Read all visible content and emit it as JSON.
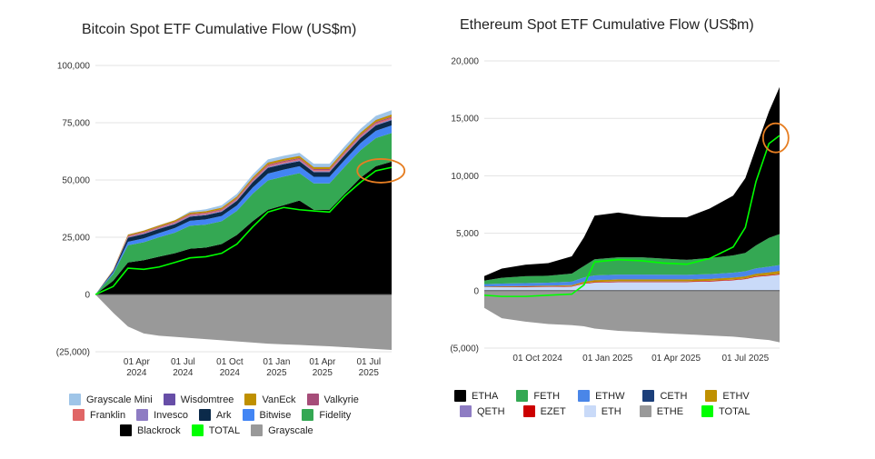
{
  "chart_data": [
    {
      "type": "area",
      "title": "Bitcoin Spot ETF Cumulative Flow (US$m)",
      "xlabel": "",
      "ylabel": "",
      "ylim": [
        -25000,
        100000
      ],
      "y_ticks": [
        "100,000",
        "75,000",
        "50,000",
        "25,000",
        "0",
        "(25,000)"
      ],
      "x_ticks": [
        {
          "line1": "01 Apr",
          "line2": "2024"
        },
        {
          "line1": "01 Jul",
          "line2": "2024"
        },
        {
          "line1": "01 Oct",
          "line2": "2024"
        },
        {
          "line1": "01 Jan",
          "line2": "2025"
        },
        {
          "line1": "01 Apr",
          "line2": "2025"
        },
        {
          "line1": "01 Jul",
          "line2": "2025"
        }
      ],
      "x": [
        "2024-01-11",
        "2024-02-15",
        "2024-03-15",
        "2024-04-15",
        "2024-05-15",
        "2024-06-15",
        "2024-07-15",
        "2024-08-15",
        "2024-09-15",
        "2024-10-15",
        "2024-11-15",
        "2024-12-15",
        "2025-01-15",
        "2025-02-15",
        "2025-03-15",
        "2025-04-15",
        "2025-05-15",
        "2025-06-15",
        "2025-07-15",
        "2025-08-15"
      ],
      "stacked_positive": true,
      "series": [
        {
          "name": "Blackrock",
          "color": "#000000",
          "values": [
            0,
            6000,
            14000,
            15000,
            16500,
            18000,
            20000,
            20500,
            22000,
            26000,
            32000,
            37000,
            39000,
            41000,
            37000,
            37000,
            44000,
            51000,
            56000,
            58000
          ]
        },
        {
          "name": "Fidelity",
          "color": "#34a853",
          "values": [
            0,
            3000,
            7500,
            7800,
            8500,
            9000,
            10000,
            10000,
            10000,
            10500,
            12000,
            12800,
            12500,
            12000,
            11500,
            11500,
            11800,
            12000,
            12300,
            12500
          ]
        },
        {
          "name": "Bitwise",
          "color": "#4285f4",
          "values": [
            0,
            700,
            1500,
            1700,
            1800,
            2000,
            2200,
            2300,
            2300,
            2400,
            2700,
            3000,
            3000,
            3000,
            2900,
            2900,
            3000,
            3100,
            3200,
            3300
          ]
        },
        {
          "name": "Ark",
          "color": "#0b2a4a",
          "values": [
            0,
            600,
            1800,
            1900,
            1800,
            1700,
            1800,
            1800,
            1800,
            2000,
            2300,
            2500,
            2400,
            2200,
            2000,
            2000,
            2100,
            2200,
            2300,
            2300
          ]
        },
        {
          "name": "Invesco",
          "color": "#8e7cc3",
          "values": [
            0,
            150,
            300,
            320,
            350,
            380,
            400,
            400,
            400,
            420,
            450,
            480,
            480,
            470,
            460,
            460,
            470,
            480,
            490,
            500
          ]
        },
        {
          "name": "Franklin",
          "color": "#e06666",
          "values": [
            0,
            100,
            250,
            270,
            300,
            330,
            350,
            350,
            360,
            380,
            420,
            460,
            470,
            470,
            460,
            460,
            480,
            500,
            520,
            540
          ]
        },
        {
          "name": "Valkyrie",
          "color": "#a64d79",
          "values": [
            0,
            100,
            300,
            320,
            330,
            340,
            350,
            350,
            360,
            380,
            420,
            460,
            460,
            450,
            440,
            440,
            450,
            460,
            470,
            480
          ]
        },
        {
          "name": "VanEck",
          "color": "#bf9000",
          "values": [
            0,
            200,
            500,
            550,
            600,
            620,
            650,
            650,
            660,
            700,
            800,
            900,
            900,
            880,
            860,
            860,
            880,
            900,
            920,
            940
          ]
        },
        {
          "name": "Wisdomtree",
          "color": "#674ea7",
          "values": [
            0,
            20,
            40,
            45,
            50,
            55,
            60,
            60,
            60,
            65,
            70,
            80,
            80,
            80,
            80,
            80,
            80,
            80,
            80,
            80
          ]
        },
        {
          "name": "Grayscale Mini",
          "color": "#9fc5e8",
          "values": [
            0,
            0,
            0,
            0,
            0,
            0,
            500,
            800,
            1000,
            1100,
            1200,
            1300,
            1300,
            1300,
            1400,
            1400,
            1500,
            1600,
            1700,
            1800
          ]
        }
      ],
      "negative_series": {
        "name": "Grayscale",
        "color": "#999999",
        "values": [
          0,
          -8000,
          -14000,
          -17000,
          -18000,
          -18500,
          -19000,
          -19500,
          -20000,
          -20500,
          -21000,
          -21500,
          -21800,
          -22000,
          -22300,
          -22600,
          -23000,
          -23400,
          -23800,
          -24200
        ]
      },
      "total_line": {
        "name": "TOTAL",
        "color": "#00ff00",
        "values": [
          0,
          3500,
          11500,
          11000,
          12000,
          14000,
          16000,
          16500,
          18000,
          22000,
          29500,
          36000,
          38000,
          37000,
          36500,
          36000,
          43000,
          49000,
          54000,
          55500
        ]
      },
      "legend_rows": [
        [
          {
            "name": "Grayscale Mini",
            "color": "#9fc5e8"
          },
          {
            "name": "Wisdomtree",
            "color": "#674ea7"
          },
          {
            "name": "VanEck",
            "color": "#bf9000"
          },
          {
            "name": "Valkyrie",
            "color": "#a64d79"
          }
        ],
        [
          {
            "name": "Franklin",
            "color": "#e06666"
          },
          {
            "name": "Invesco",
            "color": "#8e7cc3"
          },
          {
            "name": "Ark",
            "color": "#0b2a4a"
          },
          {
            "name": "Bitwise",
            "color": "#4285f4"
          },
          {
            "name": "Fidelity",
            "color": "#34a853"
          }
        ],
        [
          {
            "name": "Blackrock",
            "color": "#000000"
          },
          {
            "name": "TOTAL",
            "color": "#00ff00"
          },
          {
            "name": "Grayscale",
            "color": "#999999"
          }
        ]
      ],
      "legend_position": "bottom",
      "grid": true,
      "highlight": {
        "type": "circle",
        "color": "#e67e22",
        "x": "2025-07-25",
        "y": 54000
      }
    },
    {
      "type": "area",
      "title": "Ethereum Spot ETF Cumulative Flow (US$m)",
      "xlabel": "",
      "ylabel": "",
      "ylim": [
        -5000,
        20000
      ],
      "y_ticks": [
        "20,000",
        "15,000",
        "10,000",
        "5,000",
        "0",
        "(5,000)"
      ],
      "x_ticks": [
        {
          "line1": "01 Oct 2024"
        },
        {
          "line1": "01 Jan 2025"
        },
        {
          "line1": "01 Apr 2025"
        },
        {
          "line1": "01 Jul 2025"
        }
      ],
      "x": [
        "2024-07-23",
        "2024-08-15",
        "2024-09-15",
        "2024-10-15",
        "2024-11-15",
        "2024-12-01",
        "2024-12-15",
        "2025-01-15",
        "2025-02-15",
        "2025-03-15",
        "2025-04-15",
        "2025-05-15",
        "2025-06-15",
        "2025-07-01",
        "2025-07-15",
        "2025-08-01",
        "2025-08-15"
      ],
      "stacked_positive": true,
      "series": [
        {
          "name": "ETHE",
          "color": "#999999",
          "values": [
            0,
            0,
            0,
            0,
            0,
            0,
            0,
            0,
            0,
            0,
            0,
            0,
            0,
            0,
            0,
            0,
            0
          ]
        },
        {
          "name": "ETH",
          "color": "#c9daf8",
          "values": [
            300,
            300,
            300,
            320,
            350,
            600,
            700,
            750,
            750,
            750,
            750,
            800,
            900,
            1000,
            1200,
            1300,
            1400
          ]
        },
        {
          "name": "EZET",
          "color": "#cc0000",
          "values": [
            20,
            30,
            40,
            40,
            40,
            50,
            50,
            50,
            50,
            50,
            50,
            50,
            50,
            50,
            60,
            60,
            60
          ]
        },
        {
          "name": "QETH",
          "color": "#8e7cc3",
          "values": [
            10,
            10,
            10,
            10,
            10,
            10,
            10,
            10,
            10,
            10,
            10,
            10,
            10,
            10,
            10,
            10,
            10
          ]
        },
        {
          "name": "ETHV",
          "color": "#bf9000",
          "values": [
            30,
            40,
            50,
            60,
            80,
            120,
            150,
            160,
            160,
            160,
            160,
            160,
            170,
            180,
            200,
            220,
            240
          ]
        },
        {
          "name": "CETH",
          "color": "#1c3f7a",
          "values": [
            10,
            10,
            10,
            10,
            10,
            20,
            20,
            20,
            20,
            20,
            20,
            20,
            20,
            20,
            20,
            20,
            20
          ]
        },
        {
          "name": "ETHW",
          "color": "#4a86e8",
          "values": [
            200,
            230,
            250,
            260,
            300,
            350,
            400,
            410,
            410,
            400,
            390,
            400,
            420,
            430,
            450,
            480,
            500
          ]
        },
        {
          "name": "FETH",
          "color": "#34a853",
          "values": [
            300,
            500,
            600,
            600,
            700,
            1000,
            1400,
            1500,
            1500,
            1400,
            1300,
            1400,
            1500,
            1600,
            2000,
            2500,
            2700
          ]
        },
        {
          "name": "ETHA",
          "color": "#000000",
          "values": [
            400,
            800,
            1000,
            1100,
            1500,
            2500,
            3800,
            3900,
            3600,
            3600,
            3700,
            4300,
            5200,
            6500,
            8500,
            11000,
            12800
          ]
        }
      ],
      "negative_series": {
        "name": "ETHE",
        "color": "#999999",
        "values": [
          -1500,
          -2400,
          -2700,
          -2900,
          -3000,
          -3100,
          -3300,
          -3500,
          -3600,
          -3700,
          -3800,
          -3900,
          -4000,
          -4100,
          -4200,
          -4300,
          -4500
        ]
      },
      "total_line": {
        "name": "TOTAL",
        "color": "#00ff00",
        "values": [
          -400,
          -500,
          -500,
          -400,
          -300,
          500,
          2500,
          2700,
          2600,
          2400,
          2300,
          2800,
          3800,
          5500,
          9500,
          12800,
          13500
        ]
      },
      "legend_rows": [
        [
          {
            "name": "ETHA",
            "color": "#000000"
          },
          {
            "name": "FETH",
            "color": "#34a853"
          },
          {
            "name": "ETHW",
            "color": "#4a86e8"
          },
          {
            "name": "CETH",
            "color": "#1c3f7a"
          },
          {
            "name": "ETHV",
            "color": "#bf9000"
          }
        ],
        [
          {
            "name": "QETH",
            "color": "#8e7cc3"
          },
          {
            "name": "EZET",
            "color": "#cc0000"
          },
          {
            "name": "ETH",
            "color": "#c9daf8"
          },
          {
            "name": "ETHE",
            "color": "#999999"
          },
          {
            "name": "TOTAL",
            "color": "#00ff00"
          }
        ]
      ],
      "legend_position": "bottom",
      "grid": true,
      "highlight": {
        "type": "circle",
        "color": "#e67e22",
        "x": "2025-08-10",
        "y": 13300
      }
    }
  ]
}
